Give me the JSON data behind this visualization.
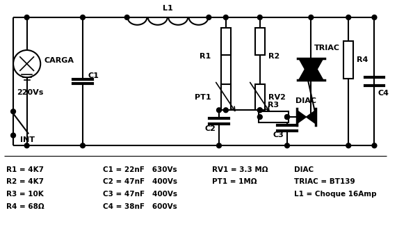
{
  "bg_color": "#ffffff",
  "lw": 1.5,
  "bom": [
    "R1 = 4K7        C1 = 22nF   630Vs     RV1 = 3.3 MΩ     DIAC",
    "R2 = 4K7        C2 = 47nF   400Vs     PT1 = 1MΩ       TRIAC = BT139",
    "R3 = 10K        C3 = 47nF   400Vs                       L1 = Choque 16Amp",
    "R4 = 68Ω        C4 = 38nF   600Vs"
  ],
  "bom_cols": [
    [
      "R1 = 4K7",
      "R2 = 4K7",
      "R3 = 10K",
      "R4 = 68Ω"
    ],
    [
      "C1 = 22nF   630Vs",
      "C2 = 47nF   400Vs",
      "C3 = 47nF   400Vs",
      "C4 = 38nF   600Vs"
    ],
    [
      "RV1 = 3.3 MΩ",
      "PT1 = 1MΩ",
      "",
      ""
    ],
    [
      "DIAC",
      "TRIAC = BT139",
      "L1 = Choque 16Amp",
      ""
    ]
  ]
}
